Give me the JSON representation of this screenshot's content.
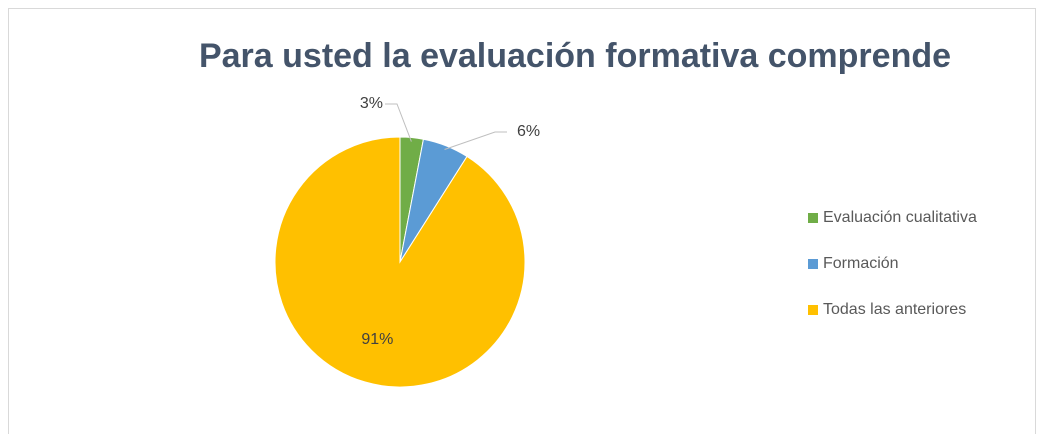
{
  "chart_data": {
    "type": "pie",
    "title": "Para usted la evaluación formativa comprende",
    "categories": [
      "Evaluación cualitativa",
      "Formación",
      "Todas las anteriores"
    ],
    "values": [
      3,
      6,
      91
    ],
    "value_labels": [
      "3%",
      "6%",
      "91%"
    ],
    "colors": [
      "#70ad47",
      "#5b9bd5",
      "#ffc000"
    ],
    "legend": "right"
  }
}
